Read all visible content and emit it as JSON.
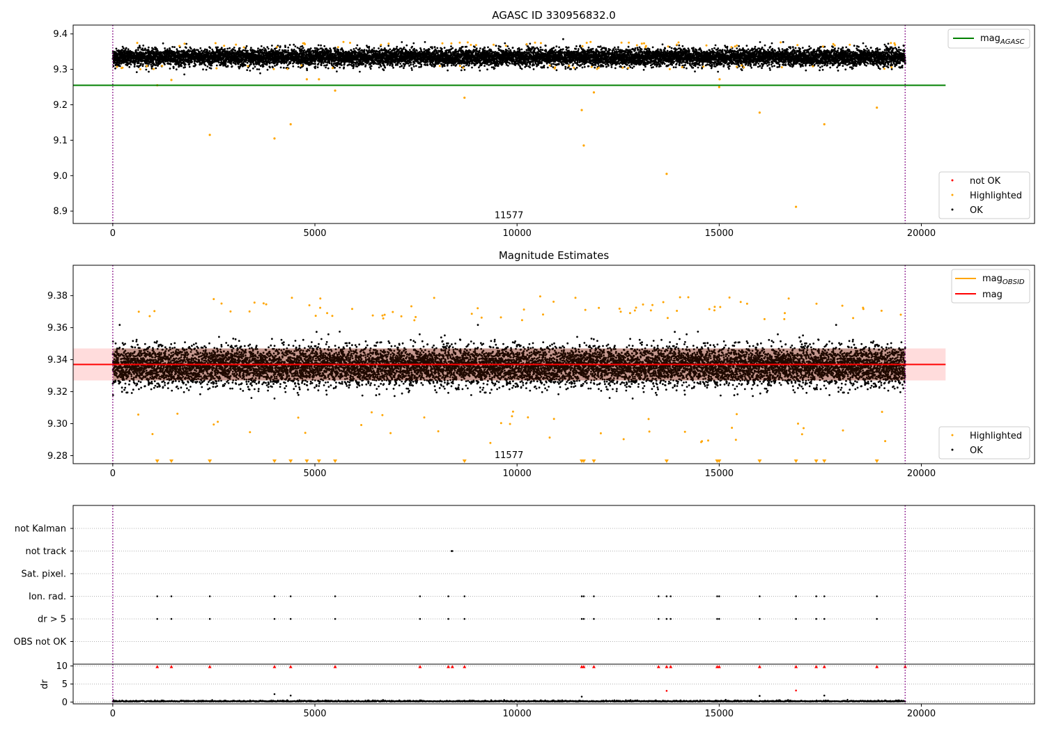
{
  "colors": {
    "ok": "#000000",
    "highlighted": "#ffa500",
    "not_ok": "#ff0000",
    "agasc_line": "#008000",
    "mag_line": "#ff0000",
    "obsid_line": "#ffa500",
    "band": "#ffc0c0",
    "boundary": "#800080"
  },
  "obsid_boundaries": [
    0,
    19600
  ],
  "chart_data": [
    {
      "id": "panel1",
      "type": "scatter",
      "title": "AGASC ID 330956832.0",
      "xlabel": "",
      "ylabel": "",
      "xlim": [
        -980,
        22800
      ],
      "ylim": [
        8.865,
        9.425
      ],
      "xticks": [
        0,
        5000,
        10000,
        15000,
        20000
      ],
      "xtick_labels": [
        "0",
        "5000",
        "10000",
        "15000",
        "20000"
      ],
      "yticks": [
        8.9,
        9.0,
        9.1,
        9.2,
        9.3,
        9.4
      ],
      "ytick_labels": [
        "8.9",
        "9.0",
        "9.1",
        "9.2",
        "9.3",
        "9.4"
      ],
      "annotation": {
        "text": "11577",
        "x": 9800,
        "y": 8.88
      },
      "line_legend": {
        "label": "mag",
        "sub": "AGASC"
      },
      "mag_agasc": 9.255,
      "line_xrange": [
        -980,
        20600
      ],
      "ok_series": {
        "name": "OK",
        "n": 11577,
        "x_range": [
          0,
          19600
        ],
        "center": 9.334,
        "spread": 0.012
      },
      "highlighted": {
        "name": "Highlighted",
        "x": [
          1100,
          2400,
          4000,
          4400,
          5500,
          8700,
          11600,
          11650,
          11900,
          13700,
          15000,
          15010,
          16000,
          16900,
          17600,
          18900,
          4800,
          5100,
          1450
        ],
        "y": [
          9.255,
          9.115,
          9.105,
          9.145,
          9.24,
          9.22,
          9.185,
          9.085,
          9.235,
          9.005,
          9.25,
          9.272,
          9.178,
          8.912,
          9.145,
          9.192,
          9.272,
          9.272,
          9.27
        ]
      },
      "not_ok": {
        "name": "not OK",
        "x": [],
        "y": []
      },
      "legend_entries": [
        "not OK",
        "Highlighted",
        "OK"
      ]
    },
    {
      "id": "panel2",
      "type": "scatter",
      "title": "Magnitude Estimates",
      "xlabel": "",
      "ylabel": "",
      "xlim": [
        -980,
        22800
      ],
      "ylim": [
        9.275,
        9.399
      ],
      "xticks": [
        0,
        5000,
        10000,
        15000,
        20000
      ],
      "xtick_labels": [
        "0",
        "5000",
        "10000",
        "15000",
        "20000"
      ],
      "yticks": [
        9.28,
        9.3,
        9.32,
        9.34,
        9.36,
        9.38
      ],
      "ytick_labels": [
        "9.28",
        "9.30",
        "9.32",
        "9.34",
        "9.36",
        "9.38"
      ],
      "annotation": {
        "text": "11577",
        "x": 9800,
        "y": 9.2785
      },
      "mag": 9.337,
      "band": [
        9.327,
        9.347
      ],
      "obsid_mag": 9.337,
      "line_xrange": [
        -980,
        20600
      ],
      "ok_series": {
        "name": "OK",
        "n": 11577,
        "x_range": [
          0,
          19600
        ],
        "center": 9.336,
        "spread": 0.006
      },
      "highlighted_clipped_x": [
        1100,
        1450,
        2400,
        4000,
        4400,
        4800,
        5100,
        5500,
        8700,
        11600,
        11650,
        11900,
        13700,
        14950,
        15000,
        16000,
        16900,
        17400,
        17600,
        18900
      ],
      "legend_entries": [
        "mag_OBSID",
        "mag",
        "Highlighted",
        "OK"
      ],
      "line_legend": [
        {
          "label": "mag",
          "sub": "OBSID"
        },
        {
          "label": "mag",
          "sub": ""
        }
      ]
    },
    {
      "id": "panel3",
      "type": "scatter",
      "title": "",
      "xlim": [
        -980,
        22800
      ],
      "flag_rows": [
        "not Kalman",
        "not track",
        "Sat. pixel.",
        "Ion. rad.",
        "dr > 5",
        "OBS not OK"
      ],
      "flag_events": {
        "not track": [
          8380,
          8400
        ],
        "Ion. rad.": [
          1100,
          1450,
          2400,
          4000,
          4400,
          5500,
          7600,
          8300,
          8700,
          11600,
          11650,
          11900,
          13500,
          13700,
          13800,
          14950,
          15000,
          16000,
          16900,
          17400,
          17600,
          18900
        ],
        "dr > 5": [
          1100,
          1450,
          2400,
          4000,
          4400,
          5500,
          7600,
          8300,
          8700,
          11600,
          11650,
          11900,
          13500,
          13700,
          13800,
          14950,
          15000,
          16000,
          16900,
          17400,
          17600,
          18900
        ]
      },
      "dr": {
        "ylabel": "dr",
        "ylim": [
          -0.5,
          10.5
        ],
        "yticks": [
          0,
          5,
          10
        ],
        "ytick_labels": [
          "0",
          "5",
          "10"
        ],
        "clip_x": [
          1100,
          1450,
          2400,
          4000,
          4400,
          5500,
          7600,
          8300,
          8400,
          8700,
          11600,
          11650,
          11900,
          13500,
          13700,
          13800,
          14950,
          15000,
          16000,
          16900,
          17400,
          17600,
          18900,
          19600
        ],
        "outliers_x": [
          4000,
          4400,
          11600,
          13700,
          16000,
          16900,
          17600
        ],
        "outliers_y": [
          2.2,
          1.8,
          1.5,
          3.1,
          1.7,
          3.2,
          1.8
        ]
      },
      "xticks": [
        0,
        5000,
        10000,
        15000,
        20000
      ],
      "xtick_labels": [
        "0",
        "5000",
        "10000",
        "15000",
        "20000"
      ]
    }
  ]
}
